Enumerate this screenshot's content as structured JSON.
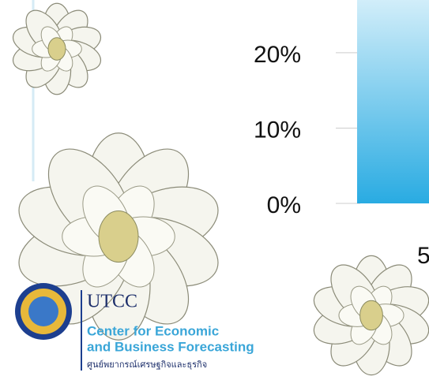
{
  "chart_data": {
    "type": "bar",
    "categories": [
      "5"
    ],
    "values": [
      30
    ],
    "color": "#29abe2",
    "ylim": [
      0,
      27
    ],
    "yticks": [
      {
        "value": 0,
        "label": "0%"
      },
      {
        "value": 10,
        "label": "10%"
      },
      {
        "value": 20,
        "label": "20%"
      }
    ]
  },
  "logo": {
    "name": "UTCC",
    "line1": "Center for Economic",
    "line2": "and Business Forecasting",
    "thai": "ศูนย์พยากรณ์เศรษฐกิจและธุรกิจ"
  }
}
